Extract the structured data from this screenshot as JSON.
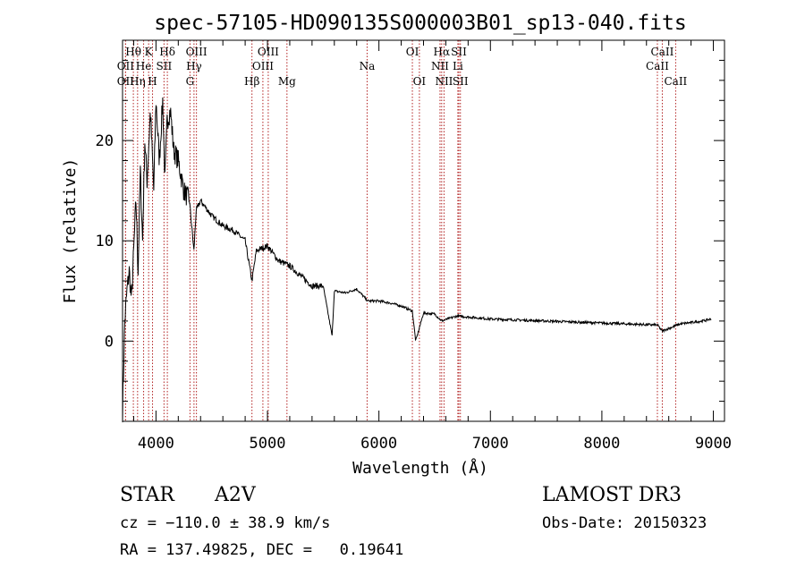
{
  "chart_data": {
    "type": "line",
    "title": "spec-57105-HD090135S000003B01_sp13-040.fits",
    "xlabel": "Wavelength (Å)",
    "ylabel": "Flux (relative)",
    "xlim": [
      3700,
      9100
    ],
    "ylim": [
      -8,
      30
    ],
    "xticks": [
      4000,
      5000,
      6000,
      7000,
      8000,
      9000
    ],
    "yticks": [
      0,
      10,
      20
    ],
    "grid": false,
    "legend": "none",
    "series": [
      {
        "name": "flux",
        "color": "#000000",
        "x": [
          3700,
          3720,
          3740,
          3760,
          3780,
          3800,
          3820,
          3840,
          3860,
          3880,
          3900,
          3920,
          3950,
          3980,
          4000,
          4030,
          4060,
          4080,
          4100,
          4130,
          4160,
          4200,
          4250,
          4300,
          4340,
          4360,
          4400,
          4500,
          4600,
          4700,
          4800,
          4861,
          4900,
          5000,
          5100,
          5200,
          5300,
          5400,
          5500,
          5580,
          5600,
          5700,
          5800,
          5900,
          6000,
          6100,
          6200,
          6300,
          6330,
          6400,
          6500,
          6563,
          6700,
          7000,
          7500,
          8000,
          8500,
          8540,
          8700,
          8900,
          8980
        ],
        "y": [
          -7,
          2,
          5,
          7,
          4,
          9,
          14,
          7,
          17,
          10,
          20,
          16,
          23,
          15,
          24,
          18,
          24,
          16,
          22,
          23,
          19,
          18,
          15,
          14,
          9,
          13,
          14,
          12.5,
          11.5,
          11,
          10,
          6,
          9,
          9.5,
          8,
          7.5,
          6.5,
          5.5,
          5.5,
          0.5,
          5,
          4.8,
          5.2,
          4,
          4,
          3.8,
          3.5,
          3,
          0,
          2.8,
          2.7,
          2,
          2.5,
          2.2,
          2,
          1.8,
          1.6,
          1,
          1.7,
          2,
          2.2
        ]
      }
    ],
    "lines": [
      {
        "label": "Hθ",
        "wl": 3797,
        "row": 1
      },
      {
        "label": "OII",
        "wl": 3727,
        "row": 2
      },
      {
        "label": "OII",
        "wl": 3727,
        "row": 3
      },
      {
        "label": "He",
        "wl": 3889,
        "row": 2
      },
      {
        "label": "Hη",
        "wl": 3835,
        "row": 3
      },
      {
        "label": "K",
        "wl": 3934,
        "row": 1
      },
      {
        "label": "H",
        "wl": 3969,
        "row": 3
      },
      {
        "label": "SII",
        "wl": 4072,
        "row": 2
      },
      {
        "label": "Hδ",
        "wl": 4102,
        "row": 1
      },
      {
        "label": "OIII",
        "wl": 4363,
        "row": 1
      },
      {
        "label": "Hγ",
        "wl": 4341,
        "row": 2
      },
      {
        "label": "G",
        "wl": 4305,
        "row": 3
      },
      {
        "label": "Hβ",
        "wl": 4861,
        "row": 3
      },
      {
        "label": "OIII",
        "wl": 5007,
        "row": 1
      },
      {
        "label": "OIII",
        "wl": 4959,
        "row": 2
      },
      {
        "label": "Mg",
        "wl": 5175,
        "row": 3
      },
      {
        "label": "Na",
        "wl": 5894,
        "row": 2
      },
      {
        "label": "OI",
        "wl": 6300,
        "row": 1
      },
      {
        "label": "OI",
        "wl": 6363,
        "row": 3
      },
      {
        "label": "Hα",
        "wl": 6563,
        "row": 1
      },
      {
        "label": "SII",
        "wl": 6717,
        "row": 1
      },
      {
        "label": "NII",
        "wl": 6548,
        "row": 2
      },
      {
        "label": "Li",
        "wl": 6708,
        "row": 2
      },
      {
        "label": "NII",
        "wl": 6584,
        "row": 3
      },
      {
        "label": "SII",
        "wl": 6731,
        "row": 3
      },
      {
        "label": "CaII",
        "wl": 8542,
        "row": 1
      },
      {
        "label": "CaII",
        "wl": 8498,
        "row": 2
      },
      {
        "label": "CaII",
        "wl": 8662,
        "row": 3
      }
    ]
  },
  "info": {
    "object_type": "STAR",
    "subclass": "A2V",
    "survey": "LAMOST DR3",
    "velocity": "cz = −110.0 ± 38.9 km/s",
    "obs_date": "Obs-Date: 20150323",
    "coords": "RA = 137.49825, DEC =   0.19641"
  }
}
